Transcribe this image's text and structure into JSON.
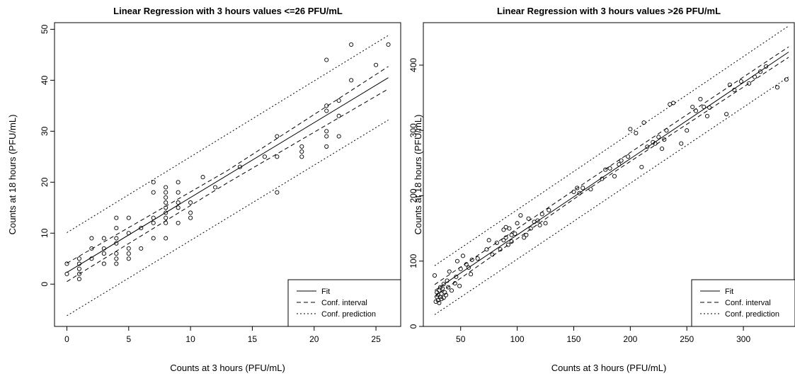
{
  "chart_data": [
    {
      "type": "scatter",
      "title": "Linear Regression with 3 hours values <=26 PFU/mL",
      "xlabel": "Counts at 3 hours (PFU/mL)",
      "ylabel": "Counts at 18 hours (PFU/mL)",
      "xlim": [
        -1,
        27
      ],
      "ylim": [
        -8.3,
        51.3
      ],
      "xticks": [
        0,
        5,
        10,
        15,
        20,
        25
      ],
      "yticks": [
        0,
        10,
        20,
        30,
        40,
        50
      ],
      "grid": false,
      "legend_position": "bottom-right",
      "legend": [
        "Fit",
        "Conf. interval",
        "Conf. prediction"
      ],
      "points": [
        [
          0,
          2
        ],
        [
          0,
          4
        ],
        [
          1,
          1
        ],
        [
          1,
          2
        ],
        [
          1,
          3
        ],
        [
          1,
          4
        ],
        [
          1,
          5
        ],
        [
          2,
          5
        ],
        [
          2,
          7
        ],
        [
          2,
          9
        ],
        [
          3,
          4
        ],
        [
          3,
          6
        ],
        [
          3,
          7
        ],
        [
          3,
          9
        ],
        [
          4,
          4
        ],
        [
          4,
          5
        ],
        [
          4,
          6
        ],
        [
          4,
          8
        ],
        [
          4,
          9
        ],
        [
          4,
          11
        ],
        [
          4,
          13
        ],
        [
          5,
          5
        ],
        [
          5,
          6
        ],
        [
          5,
          7
        ],
        [
          5,
          10
        ],
        [
          5,
          13
        ],
        [
          6,
          7
        ],
        [
          6,
          11
        ],
        [
          7,
          9
        ],
        [
          7,
          12
        ],
        [
          7,
          13
        ],
        [
          7,
          18
        ],
        [
          7,
          20
        ],
        [
          8,
          9
        ],
        [
          8,
          12
        ],
        [
          8,
          13
        ],
        [
          8,
          14
        ],
        [
          8,
          15
        ],
        [
          8,
          16
        ],
        [
          8,
          17
        ],
        [
          8,
          18
        ],
        [
          8,
          19
        ],
        [
          9,
          12
        ],
        [
          9,
          15
        ],
        [
          9,
          16
        ],
        [
          9,
          18
        ],
        [
          9,
          20
        ],
        [
          10,
          13
        ],
        [
          10,
          14
        ],
        [
          10,
          16
        ],
        [
          11,
          21
        ],
        [
          12,
          19
        ],
        [
          14,
          23
        ],
        [
          16,
          25
        ],
        [
          17,
          18
        ],
        [
          17,
          25
        ],
        [
          17,
          29
        ],
        [
          19,
          25
        ],
        [
          19,
          26
        ],
        [
          19,
          27
        ],
        [
          21,
          27
        ],
        [
          21,
          29
        ],
        [
          21,
          30
        ],
        [
          21,
          34
        ],
        [
          21,
          35
        ],
        [
          21,
          44
        ],
        [
          22,
          29
        ],
        [
          22,
          33
        ],
        [
          22,
          36
        ],
        [
          23,
          40
        ],
        [
          23,
          47
        ],
        [
          25,
          43
        ],
        [
          26,
          47
        ]
      ],
      "series": [
        {
          "name": "Fit",
          "x": [
            0,
            26
          ],
          "y": [
            2.3,
            40.5
          ]
        },
        {
          "name": "Conf. interval",
          "x": [
            0,
            13,
            26
          ],
          "y": [
            0.5,
            19.9,
            38.3
          ]
        },
        {
          "name": "Conf. interval",
          "x": [
            0,
            13,
            26
          ],
          "y": [
            4.1,
            22.3,
            42.7
          ]
        },
        {
          "name": "Conf. prediction",
          "x": [
            0,
            26
          ],
          "y": [
            -6.2,
            32.2
          ]
        },
        {
          "name": "Conf. prediction",
          "x": [
            0,
            26
          ],
          "y": [
            10.1,
            48.8
          ]
        }
      ]
    },
    {
      "type": "scatter",
      "title": "Linear Regression with 3 hours values >26 PFU/mL",
      "xlabel": "Counts at 3 hours (PFU/mL)",
      "ylabel": "Counts at 18 hours (PFU/mL)",
      "xlim": [
        17,
        345
      ],
      "ylim": [
        0,
        465
      ],
      "xticks": [
        50,
        100,
        150,
        200,
        250,
        300
      ],
      "yticks": [
        0,
        100,
        200,
        300,
        400
      ],
      "grid": false,
      "legend_position": "bottom-right",
      "legend": [
        "Fit",
        "Conf. interval",
        "Conf. prediction"
      ],
      "points": [
        [
          27,
          78
        ],
        [
          28,
          38
        ],
        [
          29,
          45
        ],
        [
          29,
          52
        ],
        [
          30,
          40
        ],
        [
          30,
          48
        ],
        [
          31,
          55
        ],
        [
          31,
          36
        ],
        [
          32,
          45
        ],
        [
          32,
          60
        ],
        [
          33,
          42
        ],
        [
          33,
          50
        ],
        [
          34,
          58
        ],
        [
          35,
          44
        ],
        [
          35,
          65
        ],
        [
          36,
          52
        ],
        [
          37,
          48
        ],
        [
          38,
          70
        ],
        [
          39,
          60
        ],
        [
          40,
          84
        ],
        [
          42,
          55
        ],
        [
          45,
          66
        ],
        [
          46,
          76
        ],
        [
          47,
          100
        ],
        [
          49,
          62
        ],
        [
          50,
          88
        ],
        [
          52,
          108
        ],
        [
          55,
          95
        ],
        [
          57,
          90
        ],
        [
          59,
          80
        ],
        [
          60,
          102
        ],
        [
          65,
          104
        ],
        [
          73,
          118
        ],
        [
          75,
          132
        ],
        [
          78,
          110
        ],
        [
          82,
          128
        ],
        [
          85,
          118
        ],
        [
          88,
          132
        ],
        [
          88,
          148
        ],
        [
          90,
          136
        ],
        [
          90,
          152
        ],
        [
          92,
          125
        ],
        [
          93,
          150
        ],
        [
          95,
          130
        ],
        [
          95,
          140
        ],
        [
          98,
          142
        ],
        [
          100,
          158
        ],
        [
          103,
          170
        ],
        [
          106,
          136
        ],
        [
          108,
          140
        ],
        [
          110,
          165
        ],
        [
          112,
          150
        ],
        [
          115,
          160
        ],
        [
          118,
          162
        ],
        [
          120,
          155
        ],
        [
          122,
          172
        ],
        [
          125,
          158
        ],
        [
          128,
          178
        ],
        [
          150,
          206
        ],
        [
          153,
          212
        ],
        [
          155,
          204
        ],
        [
          158,
          212
        ],
        [
          165,
          210
        ],
        [
          175,
          226
        ],
        [
          178,
          240
        ],
        [
          182,
          242
        ],
        [
          186,
          230
        ],
        [
          190,
          248
        ],
        [
          192,
          254
        ],
        [
          198,
          260
        ],
        [
          200,
          302
        ],
        [
          205,
          296
        ],
        [
          210,
          244
        ],
        [
          212,
          312
        ],
        [
          215,
          275
        ],
        [
          220,
          282
        ],
        [
          222,
          280
        ],
        [
          225,
          290
        ],
        [
          228,
          272
        ],
        [
          230,
          286
        ],
        [
          232,
          300
        ],
        [
          235,
          340
        ],
        [
          238,
          342
        ],
        [
          245,
          280
        ],
        [
          250,
          300
        ],
        [
          255,
          336
        ],
        [
          258,
          330
        ],
        [
          262,
          348
        ],
        [
          265,
          336
        ],
        [
          268,
          322
        ],
        [
          270,
          335
        ],
        [
          285,
          325
        ],
        [
          288,
          370
        ],
        [
          292,
          362
        ],
        [
          298,
          375
        ],
        [
          305,
          372
        ],
        [
          310,
          382
        ],
        [
          315,
          390
        ],
        [
          320,
          398
        ],
        [
          330,
          366
        ],
        [
          338,
          378
        ]
      ],
      "series": [
        {
          "name": "Fit",
          "x": [
            27,
            340
          ],
          "y": [
            55,
            420
          ]
        },
        {
          "name": "Conf. interval",
          "x": [
            27,
            160,
            340
          ],
          "y": [
            46,
            207,
            412
          ]
        },
        {
          "name": "Conf. interval",
          "x": [
            27,
            160,
            340
          ],
          "y": [
            64,
            220,
            428
          ]
        },
        {
          "name": "Conf. prediction",
          "x": [
            27,
            340
          ],
          "y": [
            18,
            382
          ]
        },
        {
          "name": "Conf. prediction",
          "x": [
            27,
            340
          ],
          "y": [
            93,
            460
          ]
        }
      ]
    }
  ]
}
